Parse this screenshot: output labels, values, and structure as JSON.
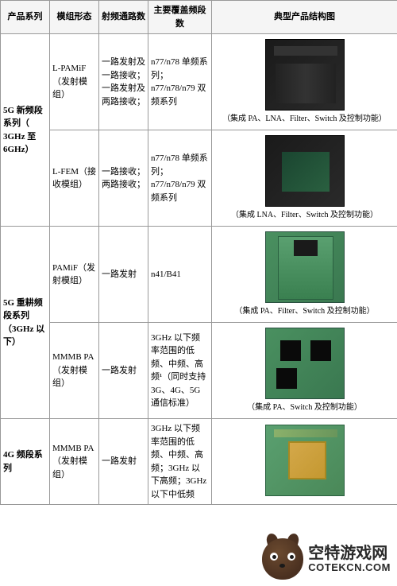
{
  "table": {
    "headers": [
      "产品系列",
      "模组形态",
      "射频通路数",
      "主要覆盖频段数",
      "典型产品结构图"
    ],
    "groups": [
      {
        "series": "5G 新频段系列（ 3GHz 至 6GHz）",
        "rows": [
          {
            "module": "L-PAMiF（发射模组）",
            "rf": "一路发射及一路接收；一路发射及两路接收；",
            "band": "n77/n78 单频系列；n77/n78/n79 双频系列",
            "chip_class": "chip1",
            "caption": "（集成 PA、LNA、Filter、Switch 及控制功能）"
          },
          {
            "module": "L-FEM（接收模组）",
            "rf": "一路接收；两路接收；",
            "band": "n77/n78 单频系列；n77/n78/n79 双频系列",
            "chip_class": "chip2",
            "caption": "（集成 LNA、Filter、Switch 及控制功能）"
          }
        ]
      },
      {
        "series": "5G 重耕频段系列（3GHz 以下）",
        "rows": [
          {
            "module": "PAMiF（发射模组）",
            "rf": "一路发射",
            "band": "n41/B41",
            "chip_class": "chip3",
            "caption": "（集成 PA、Filter、Switch 及控制功能）"
          },
          {
            "module": "MMMB PA（发射模组）",
            "rf": "一路发射",
            "band": "3GHz 以下频率范围的低频、中频、高频¹（同时支持 3G、4G、5G 通信标准）",
            "chip_class": "chip4",
            "caption": "（集成 PA、Switch 及控制功能）"
          }
        ]
      },
      {
        "series": "4G 频段系列",
        "rows": [
          {
            "module": "MMMB PA（发射模组）",
            "rf": "一路发射",
            "band": "3GHz 以下频率范围的低频、中频、高频；3GHz 以下高频；3GHz 以下中低频",
            "chip_class": "chip5",
            "caption": ""
          }
        ]
      }
    ]
  },
  "watermark": {
    "cn": "空特游戏网",
    "en": "COTEKCN.COM"
  },
  "colors": {
    "border": "#999999",
    "header_bg": "#f5f5f5",
    "chip_dark": "#1a1a1a",
    "chip_green": "#4a9060",
    "chip_gold": "#d4a84a",
    "fox_body": "#4a3020"
  }
}
